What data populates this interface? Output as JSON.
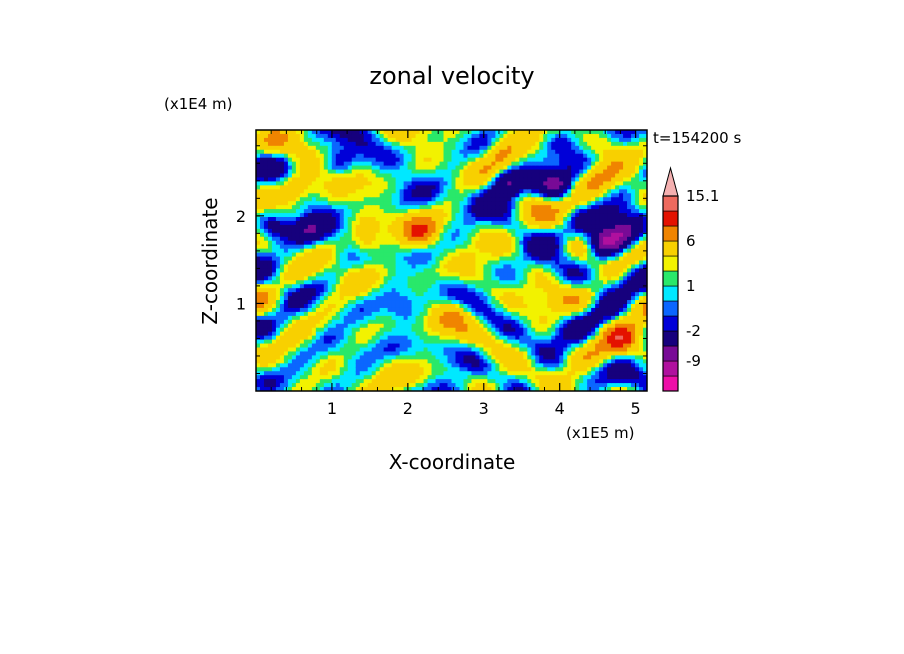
{
  "chart_data": {
    "type": "heatmap",
    "title": "zonal velocity",
    "xlabel": "X-coordinate",
    "ylabel": "Z-coordinate",
    "x_unit": "(x1E5 m)",
    "y_unit": "(x1E4 m)",
    "time_label": "t=154200 s",
    "xlim": [
      0,
      5.15
    ],
    "ylim": [
      0,
      2.98
    ],
    "x_ticks": [
      1,
      2,
      3,
      4,
      5
    ],
    "y_ticks": [
      1,
      2
    ],
    "colorbar": {
      "levels": [
        -15,
        -12,
        -9,
        -6,
        -2,
        -1,
        0,
        1,
        2,
        3,
        6,
        9,
        12,
        15.1
      ],
      "labels": [
        "15.1",
        "6",
        "1",
        "-2",
        "-9"
      ],
      "colors": [
        "#ee0ea8",
        "#b0109e",
        "#780a96",
        "#16007d",
        "#0000d8",
        "#0b66ff",
        "#00e8ff",
        "#29e86a",
        "#f2f200",
        "#f8d000",
        "#f08400",
        "#e41200",
        "#ee6a5e",
        "#f4b0b0"
      ],
      "extend": "max"
    }
  }
}
